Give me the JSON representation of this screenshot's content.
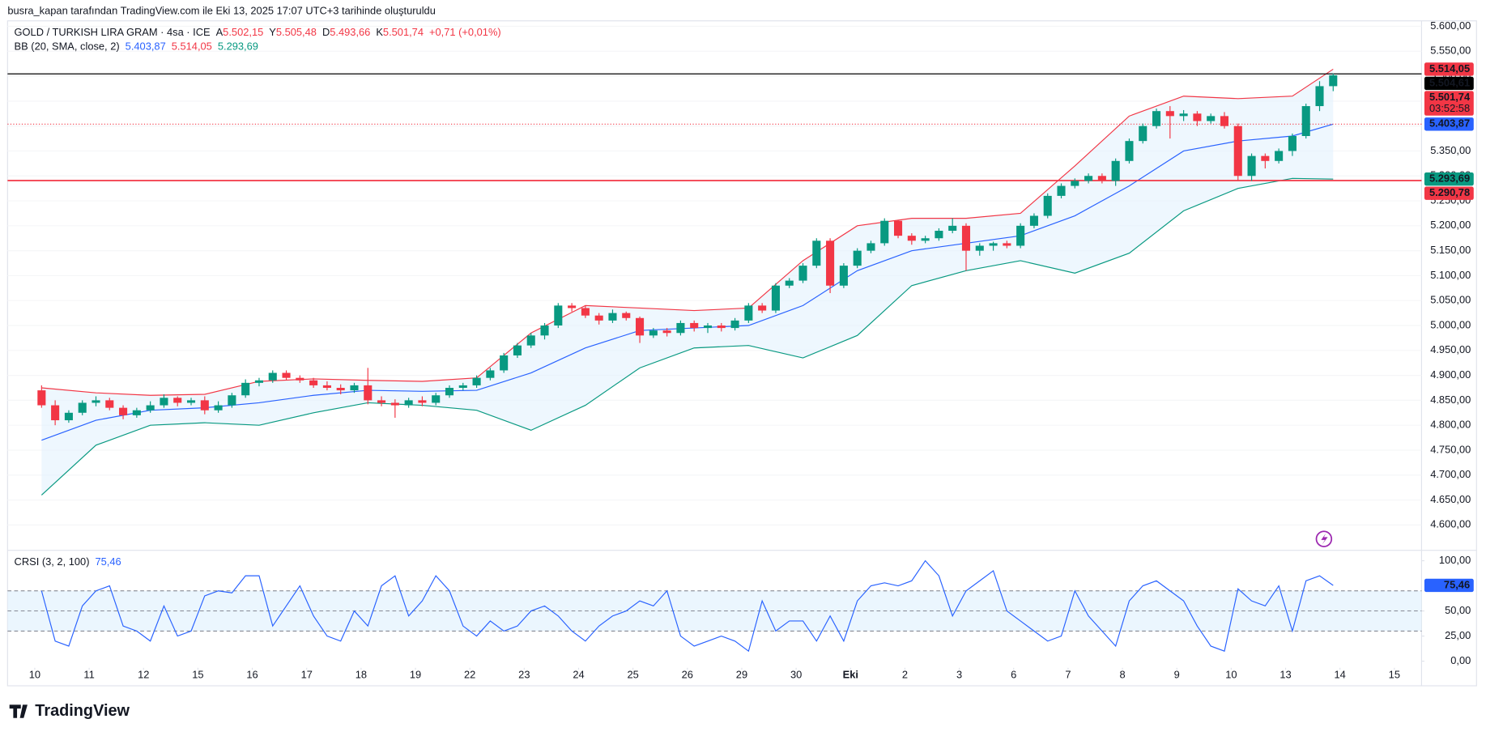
{
  "header": {
    "caption": "busra_kapan tarafından TradingView.com ile Eki 13, 2025 17:07 UTC+3 tarihinde oluşturuldu",
    "logo": "TradingView"
  },
  "legend": {
    "symbol": "GOLD / TURKISH LIRA GRAM · 4sa · ICE",
    "ohlc": [
      {
        "key": "A",
        "value": "5.502,15"
      },
      {
        "key": "Y",
        "value": "5.505,48"
      },
      {
        "key": "D",
        "value": "5.493,66"
      },
      {
        "key": "K",
        "value": "5.501,74"
      }
    ],
    "change": "+0,71 (+0,01%)",
    "indicator": "BB (20, SMA, close, 2)",
    "indicator_values": [
      {
        "value": "5.403,87",
        "color": "#2962ff"
      },
      {
        "value": "5.514,05",
        "color": "#f23645"
      },
      {
        "value": "5.293,69",
        "color": "#089981"
      }
    ]
  },
  "chart_data": [
    {
      "type": "candlestick",
      "up_color": "#089981",
      "down_color": "#f23645",
      "grid": true,
      "xlim": [
        -2,
        102
      ],
      "ylim": [
        4551,
        5611
      ],
      "xticks": [
        {
          "value": 0,
          "label": "10"
        },
        {
          "value": 4,
          "label": "11"
        },
        {
          "value": 8,
          "label": "12"
        },
        {
          "value": 12,
          "label": "15"
        },
        {
          "value": 16,
          "label": "16"
        },
        {
          "value": 20,
          "label": "17"
        },
        {
          "value": 24,
          "label": "18"
        },
        {
          "value": 28,
          "label": "19"
        },
        {
          "value": 32,
          "label": "22"
        },
        {
          "value": 36,
          "label": "23"
        },
        {
          "value": 40,
          "label": "24"
        },
        {
          "value": 44,
          "label": "25"
        },
        {
          "value": 48,
          "label": "26"
        },
        {
          "value": 52,
          "label": "29"
        },
        {
          "value": 56,
          "label": "30"
        },
        {
          "value": 60,
          "label": "Eki"
        },
        {
          "value": 64,
          "label": "2"
        },
        {
          "value": 68,
          "label": "3"
        },
        {
          "value": 72,
          "label": "6"
        },
        {
          "value": 76,
          "label": "7"
        },
        {
          "value": 80,
          "label": "8"
        },
        {
          "value": 84,
          "label": "9"
        },
        {
          "value": 88,
          "label": "10"
        },
        {
          "value": 92,
          "label": "13"
        },
        {
          "value": 96,
          "label": "14"
        },
        {
          "value": 100,
          "label": "15"
        }
      ],
      "yticks": [
        {
          "value": 4600,
          "label": "4.600,00"
        },
        {
          "value": 4650,
          "label": "4.650,00"
        },
        {
          "value": 4700,
          "label": "4.700,00"
        },
        {
          "value": 4750,
          "label": "4.750,00"
        },
        {
          "value": 4800,
          "label": "4.800,00"
        },
        {
          "value": 4850,
          "label": "4.850,00"
        },
        {
          "value": 4900,
          "label": "4.900,00"
        },
        {
          "value": 4950,
          "label": "4.950,00"
        },
        {
          "value": 5000,
          "label": "5.000,00"
        },
        {
          "value": 5050,
          "label": "5.050,00"
        },
        {
          "value": 5100,
          "label": "5.100,00"
        },
        {
          "value": 5150,
          "label": "5.150,00"
        },
        {
          "value": 5200,
          "label": "5.200,00"
        },
        {
          "value": 5250,
          "label": "5.250,00"
        },
        {
          "value": 5300,
          "label": "5.300,00"
        },
        {
          "value": 5350,
          "label": "5.350,00"
        },
        {
          "value": 5400,
          "label": "5.400,00"
        },
        {
          "value": 5450,
          "label": "5.450,00"
        },
        {
          "value": 5500,
          "label": "5.500,00"
        },
        {
          "value": 5550,
          "label": "5.550,00"
        },
        {
          "value": 5600,
          "label": "5.600,00"
        }
      ],
      "open": [
        4870,
        4840,
        4810,
        4825,
        4845,
        4850,
        4835,
        4820,
        4830,
        4840,
        4855,
        4845,
        4850,
        4830,
        4840,
        4860,
        4885,
        4890,
        4905,
        4895,
        4890,
        4880,
        4875,
        4870,
        4880,
        4850,
        4845,
        4840,
        4850,
        4845,
        4860,
        4875,
        4880,
        4895,
        4910,
        4940,
        4960,
        4980,
        5000,
        5040,
        5035,
        5020,
        5010,
        5025,
        5015,
        4980,
        4990,
        4985,
        5005,
        4995,
        5000,
        4995,
        5010,
        5040,
        5030,
        5080,
        5090,
        5120,
        5170,
        5080,
        5120,
        5150,
        5165,
        5210,
        5180,
        5170,
        5175,
        5190,
        5200,
        5150,
        5160,
        5165,
        5160,
        5200,
        5220,
        5260,
        5280,
        5290,
        5300,
        5290,
        5330,
        5370,
        5400,
        5430,
        5420,
        5425,
        5410,
        5420,
        5400,
        5300,
        5340,
        5330,
        5350,
        5380,
        5440,
        5480
      ],
      "high": [
        4880,
        4850,
        4830,
        4850,
        4858,
        4855,
        4840,
        4835,
        4848,
        4862,
        4858,
        4855,
        4858,
        4848,
        4865,
        4892,
        4895,
        4910,
        4910,
        4900,
        4895,
        4888,
        4882,
        4885,
        4915,
        4858,
        4852,
        4855,
        4858,
        4865,
        4880,
        4885,
        4900,
        4915,
        4945,
        4965,
        4985,
        5005,
        5045,
        5045,
        5040,
        5025,
        5032,
        5028,
        5018,
        4995,
        4995,
        5010,
        5010,
        5005,
        5005,
        5015,
        5045,
        5045,
        5085,
        5095,
        5125,
        5175,
        5175,
        5125,
        5155,
        5170,
        5215,
        5212,
        5185,
        5180,
        5195,
        5215,
        5205,
        5165,
        5168,
        5170,
        5205,
        5225,
        5265,
        5285,
        5295,
        5305,
        5305,
        5335,
        5375,
        5405,
        5435,
        5440,
        5432,
        5430,
        5425,
        5428,
        5405,
        5345,
        5345,
        5355,
        5385,
        5445,
        5490,
        5505.48
      ],
      "low": [
        4835,
        4800,
        4805,
        4820,
        4838,
        4830,
        4812,
        4815,
        4825,
        4835,
        4838,
        4840,
        4822,
        4825,
        4835,
        4855,
        4878,
        4885,
        4890,
        4885,
        4875,
        4870,
        4862,
        4865,
        4842,
        4838,
        4815,
        4835,
        4838,
        4840,
        4855,
        4870,
        4875,
        4890,
        4905,
        4935,
        4955,
        4972,
        4995,
        5028,
        5015,
        5002,
        5005,
        5010,
        4965,
        4975,
        4978,
        4980,
        4988,
        4985,
        4988,
        4990,
        5005,
        5025,
        5025,
        5075,
        5085,
        5115,
        5065,
        5075,
        5115,
        5145,
        5160,
        5175,
        5162,
        5165,
        5170,
        5185,
        5110,
        5140,
        5150,
        5155,
        5155,
        5195,
        5215,
        5255,
        5275,
        5285,
        5285,
        5280,
        5325,
        5365,
        5395,
        5375,
        5410,
        5400,
        5405,
        5395,
        5290,
        5290,
        5315,
        5325,
        5340,
        5375,
        5430,
        5470
      ],
      "close": [
        4840,
        4810,
        4825,
        4845,
        4850,
        4835,
        4820,
        4830,
        4840,
        4855,
        4845,
        4850,
        4830,
        4840,
        4860,
        4885,
        4890,
        4905,
        4895,
        4890,
        4880,
        4875,
        4870,
        4880,
        4850,
        4845,
        4840,
        4850,
        4845,
        4860,
        4875,
        4880,
        4895,
        4910,
        4940,
        4960,
        4980,
        5000,
        5040,
        5035,
        5020,
        5010,
        5025,
        5015,
        4980,
        4990,
        4985,
        5005,
        4995,
        5000,
        4995,
        5010,
        5040,
        5030,
        5080,
        5090,
        5120,
        5170,
        5080,
        5120,
        5150,
        5165,
        5210,
        5180,
        5170,
        5175,
        5190,
        5200,
        5150,
        5160,
        5165,
        5160,
        5200,
        5220,
        5260,
        5280,
        5290,
        5300,
        5290,
        5330,
        5370,
        5400,
        5430,
        5420,
        5425,
        5410,
        5420,
        5400,
        5300,
        5340,
        5330,
        5350,
        5380,
        5440,
        5480,
        5501.74
      ],
      "bands": {
        "x": [
          0,
          4,
          8,
          12,
          16,
          20,
          24,
          28,
          32,
          36,
          40,
          44,
          48,
          52,
          56,
          60,
          64,
          68,
          72,
          76,
          80,
          84,
          88,
          92,
          95
        ],
        "upper": [
          4875,
          4865,
          4860,
          4862,
          4888,
          4893,
          4890,
          4888,
          4895,
          4985,
          5040,
          5035,
          5030,
          5035,
          5130,
          5200,
          5215,
          5215,
          5225,
          5320,
          5420,
          5460,
          5455,
          5460,
          5514.05
        ],
        "basis": [
          4770,
          4810,
          4830,
          4835,
          4845,
          4860,
          4870,
          4868,
          4870,
          4905,
          4955,
          4990,
          4995,
          5000,
          5040,
          5110,
          5150,
          5165,
          5180,
          5220,
          5280,
          5350,
          5370,
          5380,
          5403.87
        ],
        "lower": [
          4660,
          4760,
          4800,
          4805,
          4800,
          4825,
          4845,
          4840,
          4830,
          4790,
          4840,
          4915,
          4955,
          4960,
          4935,
          4980,
          5080,
          5110,
          5130,
          5105,
          5145,
          5230,
          5275,
          5295,
          5293.69
        ],
        "upper_color": "#f23645",
        "basis_color": "#2962ff",
        "lower_color": "#089981",
        "fill": "#e3f2fd"
      },
      "price_labels": [
        {
          "value": 5514.05,
          "label": "5.514,05",
          "color": "#f23645"
        },
        {
          "value": 5504.61,
          "label": "5.504,61",
          "color": "#000000",
          "line": "solid"
        },
        {
          "value": 5501.74,
          "label": "5.501,74",
          "color": "#f23645",
          "countdown": "03:52:58"
        },
        {
          "value": 5403.87,
          "label": "5.403,87",
          "color": "#2962ff",
          "line": "dotted",
          "line_color": "#f23645"
        },
        {
          "value": 5293.69,
          "label": "5.293,69",
          "color": "#089981"
        },
        {
          "value": 5290.78,
          "label": "5.290,78",
          "color": "#f23645",
          "line": "solid"
        }
      ]
    },
    {
      "type": "line",
      "title": "CRSI (3, 2, 100)",
      "legend_value": "75,46",
      "color": "#2962ff",
      "xlim": [
        -2,
        102
      ],
      "ylim": [
        -6.6,
        109.4
      ],
      "yticks": [
        {
          "value": 0,
          "label": "0,00"
        },
        {
          "value": 25,
          "label": "25,00"
        },
        {
          "value": 50,
          "label": "50,00"
        },
        {
          "value": 100,
          "label": "100,00"
        }
      ],
      "levels": [
        70,
        50,
        30
      ],
      "band_fill": "#e3f2fd",
      "values": [
        70,
        20,
        15,
        55,
        70,
        75,
        35,
        30,
        20,
        55,
        25,
        30,
        65,
        70,
        68,
        85,
        85,
        35,
        55,
        75,
        45,
        25,
        20,
        50,
        35,
        75,
        85,
        45,
        60,
        85,
        70,
        35,
        25,
        40,
        30,
        35,
        50,
        55,
        45,
        30,
        20,
        35,
        45,
        50,
        60,
        55,
        70,
        25,
        15,
        20,
        25,
        20,
        10,
        60,
        30,
        40,
        40,
        20,
        45,
        20,
        60,
        75,
        78,
        75,
        80,
        100,
        85,
        45,
        70,
        80,
        90,
        50,
        40,
        30,
        20,
        25,
        70,
        45,
        30,
        15,
        60,
        75,
        80,
        70,
        60,
        35,
        15,
        10,
        72,
        60,
        55,
        75,
        30,
        80,
        85,
        75.46
      ],
      "last_label": {
        "value": 75.46,
        "label": "75,46"
      }
    }
  ]
}
